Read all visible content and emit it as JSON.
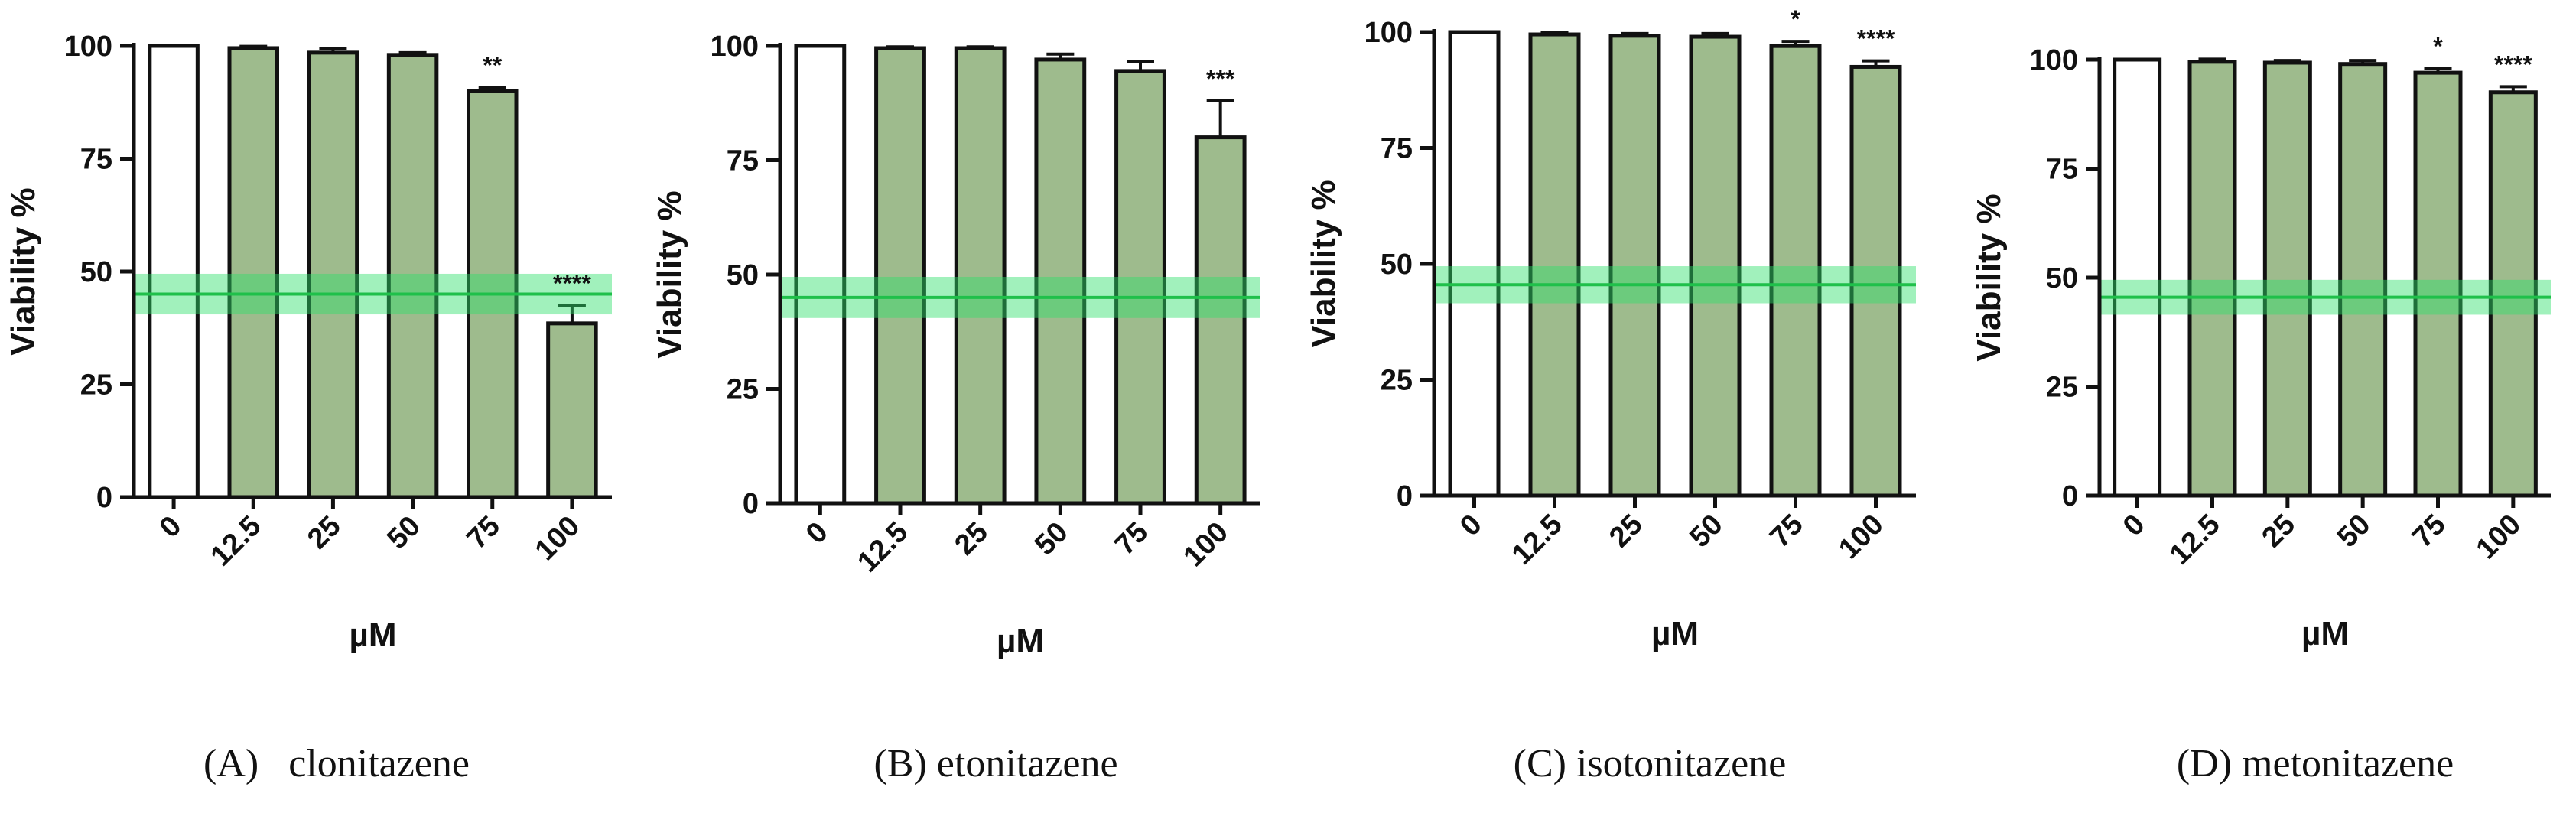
{
  "chart_data": [
    {
      "type": "bar",
      "caption": "(A)   clonitazene",
      "categories": [
        "0",
        "12.5",
        "25",
        "50",
        "75",
        "100"
      ],
      "values": [
        100,
        99.5,
        98.5,
        98,
        90,
        38.5
      ],
      "errors": [
        0,
        0.4,
        0.9,
        0.5,
        0.8,
        4
      ],
      "significance": [
        "",
        "",
        "",
        "",
        "**",
        "****"
      ],
      "xlabel": "µM",
      "ylabel": "Viability %",
      "ylim": [
        0,
        100
      ],
      "yticks": [
        0,
        25,
        50,
        75,
        100
      ],
      "reference_band": {
        "value": 45,
        "low": 40.5,
        "high": 49.5
      }
    },
    {
      "type": "bar",
      "caption": "(B) etonitazene",
      "categories": [
        "0",
        "12.5",
        "25",
        "50",
        "75",
        "100"
      ],
      "values": [
        100,
        99.5,
        99.5,
        97,
        94.5,
        80
      ],
      "errors": [
        0,
        0.3,
        0.3,
        1.2,
        2,
        8
      ],
      "significance": [
        "",
        "",
        "",
        "",
        "",
        "***"
      ],
      "xlabel": "µM",
      "ylabel": "Viability %",
      "ylim": [
        0,
        100
      ],
      "yticks": [
        0,
        25,
        50,
        75,
        100
      ],
      "reference_band": {
        "value": 45,
        "low": 40.5,
        "high": 49.5
      }
    },
    {
      "type": "bar",
      "caption": "(C) isotonitazene",
      "categories": [
        "0",
        "12.5",
        "25",
        "50",
        "75",
        "100"
      ],
      "values": [
        100,
        99.5,
        99.2,
        99,
        97,
        92.5
      ],
      "errors": [
        0,
        0.5,
        0.5,
        0.7,
        1,
        1.3
      ],
      "significance": [
        "",
        "",
        "",
        "",
        "*",
        "****"
      ],
      "xlabel": "µM",
      "ylabel": "Viability %",
      "ylim": [
        0,
        100
      ],
      "yticks": [
        0,
        25,
        50,
        75,
        100
      ],
      "reference_band": {
        "value": 45.5,
        "low": 41.5,
        "high": 49.5
      }
    },
    {
      "type": "bar",
      "caption": "(D) metonitazene",
      "categories": [
        "0",
        "12.5",
        "25",
        "50",
        "75",
        "100"
      ],
      "values": [
        100,
        99.5,
        99.3,
        99,
        97,
        92.5
      ],
      "errors": [
        0,
        0.6,
        0.5,
        0.8,
        1,
        1.3
      ],
      "significance": [
        "",
        "",
        "",
        "",
        "*",
        "****"
      ],
      "xlabel": "µM",
      "ylabel": "Viability %",
      "ylim": [
        0,
        100
      ],
      "yticks": [
        0,
        25,
        50,
        75,
        100
      ],
      "reference_band": {
        "value": 45.5,
        "low": 41.5,
        "high": 49.5
      }
    }
  ],
  "colors": {
    "bar_fill": "#9ebb8d",
    "control_fill": "#ffffff",
    "bar_stroke": "#111111",
    "band_fill": "#2ee06a",
    "band_line": "#1fc04a"
  }
}
